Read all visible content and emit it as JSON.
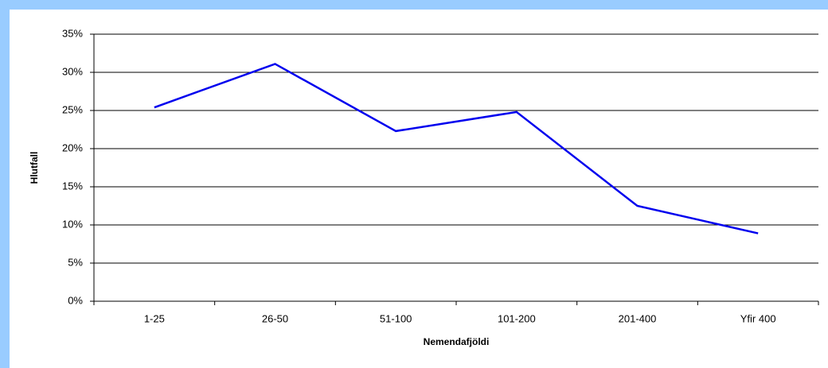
{
  "chart_data": {
    "type": "line",
    "categories": [
      "1-25",
      "26-50",
      "51-100",
      "101-200",
      "201-400",
      "Yfir 400"
    ],
    "series": [
      {
        "name": "Hlutfall",
        "color": "#0000ee",
        "values": [
          25.4,
          31.1,
          22.3,
          24.8,
          12.5,
          8.9
        ]
      }
    ],
    "xlabel": "Nemendafjöldi",
    "ylabel": "Hlutfall",
    "ylim": [
      0,
      35
    ],
    "yticks": [
      {
        "value": 0,
        "label": "0%"
      },
      {
        "value": 5,
        "label": "5%"
      },
      {
        "value": 10,
        "label": "10%"
      },
      {
        "value": 15,
        "label": "15%"
      },
      {
        "value": 20,
        "label": "20%"
      },
      {
        "value": 25,
        "label": "25%"
      },
      {
        "value": 30,
        "label": "30%"
      },
      {
        "value": 35,
        "label": "35%"
      }
    ],
    "grid": true
  }
}
